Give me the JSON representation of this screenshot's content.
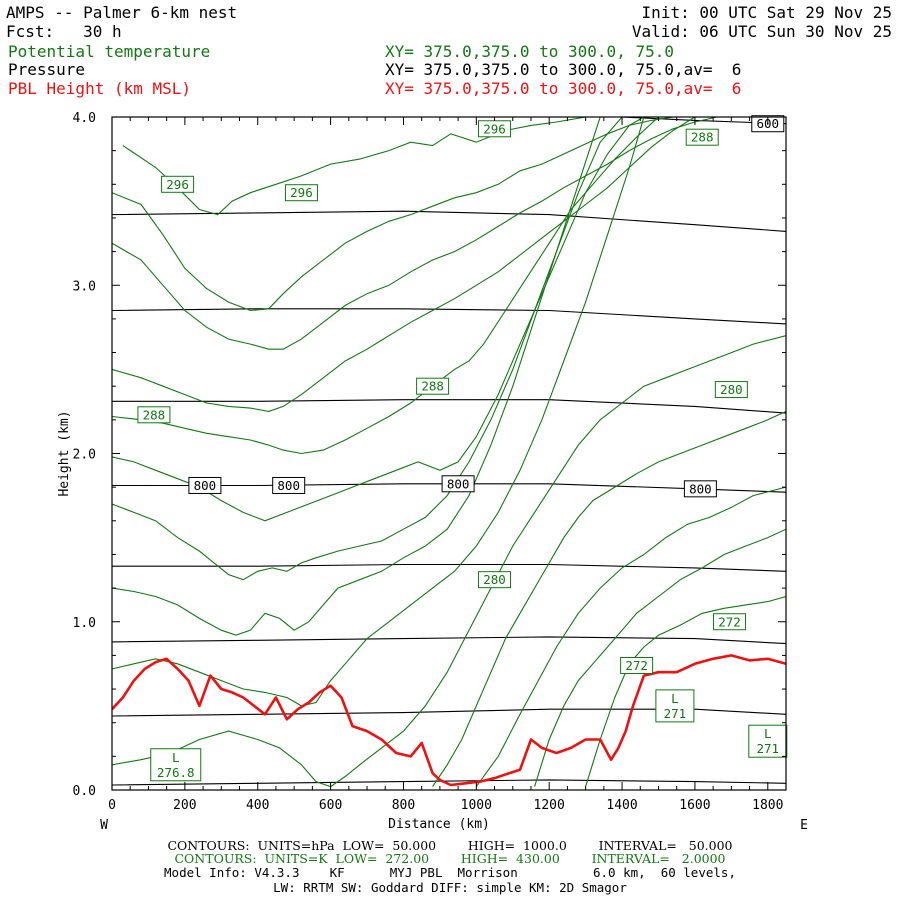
{
  "header": {
    "model_title": "AMPS -- Palmer 6-km nest",
    "forecast": "Fcst:   30 h",
    "init": "Init: 00 UTC Sat 29 Nov 25",
    "valid": "Valid: 06 UTC Sun 30 Nov 25",
    "fields": [
      {
        "name": "Potential temperature",
        "xy": "XY= 375.0,375.0 to 300.0, 75.0",
        "color": "#127812"
      },
      {
        "name": "Pressure",
        "xy": "XY= 375.0,375.0 to 300.0, 75.0,av=  6",
        "color": "#000000"
      },
      {
        "name": "PBL Height (km MSL)",
        "xy": "XY= 375.0,375.0 to 300.0, 75.0,av=  6",
        "color": "#ee1111"
      }
    ]
  },
  "chart_data": {
    "type": "line",
    "xlabel": "Distance (km)",
    "ylabel": "Height (km)",
    "xlim": [
      0,
      1850
    ],
    "ylim": [
      0,
      4.0
    ],
    "x_ticks": [
      "0",
      "200",
      "400",
      "600",
      "800",
      "1000",
      "1200",
      "1400",
      "1600",
      "1800"
    ],
    "y_ticks": [
      "0.0",
      "1.0",
      "2.0",
      "3.0",
      "4.0"
    ],
    "direction_left": "W",
    "direction_right": "E",
    "colors": {
      "pressure": "#000000",
      "theta": "#127812",
      "pbl": "#ee1111"
    },
    "pressure_contours": [
      {
        "x": [
          0,
          400,
          800,
          1200,
          1600,
          1850
        ],
        "y": [
          0.03,
          0.04,
          0.05,
          0.06,
          0.05,
          0.04
        ]
      },
      {
        "x": [
          0,
          400,
          800,
          1200,
          1600,
          1850
        ],
        "y": [
          0.44,
          0.45,
          0.46,
          0.48,
          0.48,
          0.45
        ]
      },
      {
        "x": [
          0,
          400,
          800,
          1200,
          1600,
          1850
        ],
        "y": [
          0.88,
          0.89,
          0.9,
          0.91,
          0.9,
          0.87
        ]
      },
      {
        "x": [
          0,
          400,
          800,
          1200,
          1600,
          1850
        ],
        "y": [
          1.33,
          1.33,
          1.34,
          1.34,
          1.32,
          1.3
        ]
      },
      {
        "x": [
          0,
          400,
          800,
          1200,
          1600,
          1850
        ],
        "y": [
          1.81,
          1.81,
          1.82,
          1.82,
          1.79,
          1.77
        ]
      },
      {
        "x": [
          0,
          400,
          800,
          1200,
          1600,
          1850
        ],
        "y": [
          2.31,
          2.31,
          2.32,
          2.32,
          2.28,
          2.24
        ]
      },
      {
        "x": [
          0,
          400,
          800,
          1200,
          1600,
          1850
        ],
        "y": [
          2.85,
          2.86,
          2.86,
          2.85,
          2.8,
          2.77
        ]
      },
      {
        "x": [
          0,
          400,
          800,
          1200,
          1600,
          1850
        ],
        "y": [
          3.42,
          3.43,
          3.44,
          3.42,
          3.36,
          3.32
        ]
      },
      {
        "x": [
          0,
          400,
          800,
          1200,
          1600,
          1850
        ],
        "y": [
          4.02,
          4.03,
          4.03,
          4.02,
          3.98,
          3.96
        ]
      }
    ],
    "pressure_labels": [
      {
        "text": "800",
        "x": 255,
        "y": 1.81
      },
      {
        "text": "800",
        "x": 485,
        "y": 1.81
      },
      {
        "text": "800",
        "x": 950,
        "y": 1.82
      },
      {
        "text": "800",
        "x": 1615,
        "y": 1.79
      },
      {
        "text": "600",
        "x": 1800,
        "y": 3.96
      }
    ],
    "theta_contours": [
      {
        "x": [
          30,
          120,
          180,
          240,
          290,
          330,
          380,
          450,
          520,
          600,
          680,
          760,
          820,
          880,
          930,
          1000,
          1080,
          1150,
          1220,
          1300,
          1400,
          1500,
          1600,
          1700,
          1780,
          1850
        ],
        "y": [
          3.83,
          3.7,
          3.58,
          3.45,
          3.42,
          3.5,
          3.55,
          3.6,
          3.65,
          3.72,
          3.75,
          3.8,
          3.85,
          3.83,
          3.9,
          3.85,
          3.92,
          3.95,
          3.97,
          4.0,
          4.0,
          4.0,
          4.0,
          4.0,
          4.0,
          4.0
        ]
      },
      {
        "x": [
          0,
          80,
          140,
          200,
          260,
          320,
          380,
          430,
          470,
          520,
          580,
          640,
          700,
          760,
          820,
          880,
          940,
          1000,
          1060,
          1120,
          1180,
          1240,
          1300,
          1360,
          1420,
          1480,
          1540,
          1600,
          1660,
          1720
        ],
        "y": [
          3.55,
          3.48,
          3.3,
          3.1,
          2.98,
          2.9,
          2.85,
          2.86,
          2.95,
          3.05,
          3.15,
          3.25,
          3.32,
          3.38,
          3.42,
          3.47,
          3.52,
          3.55,
          3.6,
          3.68,
          3.72,
          3.78,
          3.84,
          3.9,
          3.95,
          3.98,
          4.0,
          4.02,
          4.02,
          4.02
        ]
      },
      {
        "x": [
          0,
          80,
          140,
          200,
          260,
          320,
          380,
          430,
          470,
          520,
          580,
          640,
          700,
          760,
          820,
          880,
          940,
          1000,
          1060,
          1120,
          1180,
          1240,
          1300,
          1360,
          1420,
          1480,
          1540,
          1600,
          1660
        ],
        "y": [
          3.25,
          3.15,
          3.0,
          2.85,
          2.75,
          2.68,
          2.65,
          2.62,
          2.62,
          2.68,
          2.78,
          2.88,
          2.95,
          3.0,
          3.08,
          3.15,
          3.2,
          3.27,
          3.35,
          3.43,
          3.5,
          3.58,
          3.65,
          3.72,
          3.8,
          3.87,
          3.93,
          3.97,
          4.0
        ]
      },
      {
        "x": [
          0,
          80,
          140,
          200,
          260,
          320,
          380,
          430,
          470,
          520,
          580,
          640,
          700,
          760,
          820,
          880,
          940,
          1000,
          1060,
          1120,
          1180,
          1240,
          1300,
          1360,
          1420,
          1480,
          1540,
          1600
        ],
        "y": [
          2.5,
          2.45,
          2.4,
          2.35,
          2.3,
          2.28,
          2.27,
          2.25,
          2.28,
          2.35,
          2.45,
          2.55,
          2.62,
          2.7,
          2.78,
          2.85,
          2.92,
          3.0,
          3.08,
          3.18,
          3.28,
          3.38,
          3.48,
          3.58,
          3.7,
          3.82,
          3.92,
          4.0
        ]
      },
      {
        "x": [
          0,
          80,
          140,
          200,
          260,
          320,
          380,
          430,
          470,
          520,
          580,
          640,
          700,
          760,
          820,
          880,
          940,
          980,
          1020,
          1080,
          1140,
          1200,
          1260,
          1320,
          1380,
          1440,
          1500
        ],
        "y": [
          2.22,
          2.2,
          2.18,
          2.15,
          2.12,
          2.1,
          2.08,
          2.05,
          2.02,
          2.0,
          2.02,
          2.08,
          2.15,
          2.22,
          2.3,
          2.4,
          2.5,
          2.55,
          2.65,
          2.85,
          3.05,
          3.25,
          3.45,
          3.6,
          3.75,
          3.88,
          4.0
        ]
      },
      {
        "x": [
          0,
          60,
          120,
          180,
          240,
          300,
          360,
          420,
          480,
          540,
          600,
          660,
          720,
          780,
          840,
          900,
          950,
          1000,
          1060,
          1120,
          1180,
          1240,
          1300,
          1360,
          1420,
          1460
        ],
        "y": [
          1.98,
          1.95,
          1.9,
          1.85,
          1.8,
          1.72,
          1.65,
          1.6,
          1.65,
          1.7,
          1.75,
          1.8,
          1.85,
          1.9,
          1.95,
          1.9,
          1.95,
          2.1,
          2.35,
          2.65,
          2.95,
          3.25,
          3.55,
          3.78,
          3.95,
          4.0
        ]
      },
      {
        "x": [
          0,
          60,
          120,
          180,
          240,
          280,
          320,
          360,
          400,
          440,
          480,
          520,
          560,
          620,
          680,
          740,
          800,
          860,
          920,
          980,
          1040,
          1100,
          1160,
          1220,
          1280,
          1340,
          1400
        ],
        "y": [
          1.7,
          1.65,
          1.6,
          1.5,
          1.42,
          1.35,
          1.28,
          1.25,
          1.3,
          1.32,
          1.3,
          1.35,
          1.38,
          1.42,
          1.45,
          1.48,
          1.55,
          1.62,
          1.75,
          1.95,
          2.2,
          2.5,
          2.85,
          3.2,
          3.55,
          3.85,
          4.0
        ]
      },
      {
        "x": [
          0,
          60,
          120,
          180,
          240,
          300,
          340,
          380,
          420,
          460,
          500,
          540,
          580,
          620,
          680,
          740,
          800,
          860,
          920,
          980,
          1040,
          1100,
          1160,
          1220,
          1280,
          1340
        ],
        "y": [
          1.2,
          1.18,
          1.15,
          1.1,
          1.02,
          0.95,
          0.92,
          0.95,
          1.05,
          1.02,
          0.95,
          1.0,
          1.1,
          1.2,
          1.25,
          1.3,
          1.38,
          1.45,
          1.55,
          1.75,
          2.05,
          2.4,
          2.8,
          3.2,
          3.6,
          4.0
        ]
      },
      {
        "x": [
          0,
          60,
          120,
          180,
          240,
          300,
          360,
          420,
          480,
          520,
          560,
          600,
          640,
          700,
          760,
          820,
          880,
          940,
          1000,
          1060,
          1120,
          1180,
          1240,
          1300,
          1360,
          1420,
          1460
        ],
        "y": [
          0.72,
          0.75,
          0.78,
          0.75,
          0.7,
          0.65,
          0.6,
          0.58,
          0.55,
          0.5,
          0.52,
          0.65,
          0.75,
          0.9,
          1.0,
          1.1,
          1.2,
          1.3,
          1.45,
          1.65,
          1.9,
          2.2,
          2.55,
          2.9,
          3.3,
          3.7,
          4.0
        ]
      },
      {
        "x": [
          0,
          80,
          160,
          240,
          320,
          400,
          460,
          520,
          560,
          600,
          640,
          680,
          740,
          800,
          860,
          920,
          980,
          1040,
          1100,
          1160,
          1220,
          1280,
          1340,
          1400,
          1460,
          1520,
          1580,
          1640,
          1700,
          1760,
          1850
        ],
        "y": [
          0.15,
          0.18,
          0.22,
          0.3,
          0.35,
          0.3,
          0.25,
          0.15,
          0.05,
          0.02,
          0.08,
          0.15,
          0.25,
          0.35,
          0.5,
          0.7,
          0.95,
          1.2,
          1.45,
          1.65,
          1.85,
          2.05,
          2.2,
          2.3,
          2.4,
          2.45,
          2.5,
          2.55,
          2.6,
          2.65,
          2.7
        ]
      },
      {
        "x": [
          880,
          920,
          960,
          1000,
          1040,
          1080,
          1120,
          1160,
          1200,
          1240,
          1280,
          1320,
          1380,
          1440,
          1500,
          1560,
          1620,
          1680,
          1740,
          1800,
          1850
        ],
        "y": [
          0.02,
          0.15,
          0.3,
          0.5,
          0.7,
          0.9,
          1.05,
          1.2,
          1.35,
          1.5,
          1.62,
          1.72,
          1.8,
          1.88,
          1.95,
          2.0,
          2.05,
          2.1,
          2.15,
          2.2,
          2.25
        ]
      },
      {
        "x": [
          1000,
          1060,
          1120,
          1170,
          1220,
          1280,
          1340,
          1400,
          1460,
          1520,
          1580,
          1640,
          1700,
          1760,
          1850
        ],
        "y": [
          0.02,
          0.2,
          0.45,
          0.65,
          0.85,
          1.05,
          1.2,
          1.32,
          1.4,
          1.5,
          1.58,
          1.62,
          1.68,
          1.75,
          1.8
        ]
      },
      {
        "x": [
          1160,
          1200,
          1240,
          1280,
          1320,
          1360,
          1400,
          1440,
          1500,
          1560,
          1620,
          1680,
          1740,
          1800,
          1850
        ],
        "y": [
          0.02,
          0.3,
          0.5,
          0.65,
          0.75,
          0.85,
          0.95,
          1.05,
          1.15,
          1.25,
          1.32,
          1.4,
          1.45,
          1.5,
          1.55
        ]
      },
      {
        "x": [
          1300,
          1340,
          1380,
          1420,
          1460,
          1500,
          1560,
          1620,
          1680,
          1740,
          1800,
          1850
        ],
        "y": [
          0.02,
          0.3,
          0.55,
          0.75,
          0.85,
          0.92,
          0.98,
          1.05,
          1.08,
          1.1,
          1.12,
          1.15
        ]
      }
    ],
    "theta_labels": [
      {
        "text": "296",
        "x": 1050,
        "y": 3.93
      },
      {
        "text": "288",
        "x": 1620,
        "y": 3.88
      },
      {
        "text": "296",
        "x": 180,
        "y": 3.6
      },
      {
        "text": "296",
        "x": 520,
        "y": 3.55
      },
      {
        "text": "288",
        "x": 880,
        "y": 2.4
      },
      {
        "text": "288",
        "x": 115,
        "y": 2.23
      },
      {
        "text": "280",
        "x": 1700,
        "y": 2.38
      },
      {
        "text": "280",
        "x": 1050,
        "y": 1.25
      },
      {
        "text": "272",
        "x": 1695,
        "y": 1.0
      },
      {
        "text": "272",
        "x": 1440,
        "y": 0.74
      }
    ],
    "lows": [
      {
        "label": "L",
        "value": "276.8",
        "x": 175,
        "y": 0.15
      },
      {
        "label": "L",
        "value": "271",
        "x": 1545,
        "y": 0.5
      },
      {
        "label": "L",
        "value": "271",
        "x": 1800,
        "y": 0.29
      }
    ],
    "pbl_height": {
      "x": [
        0,
        30,
        60,
        90,
        120,
        150,
        180,
        210,
        240,
        270,
        300,
        330,
        360,
        390,
        420,
        450,
        480,
        510,
        540,
        570,
        600,
        630,
        660,
        700,
        740,
        780,
        820,
        850,
        880,
        900,
        930,
        970,
        1010,
        1050,
        1090,
        1120,
        1150,
        1180,
        1220,
        1260,
        1300,
        1340,
        1370,
        1390,
        1410,
        1430,
        1460,
        1500,
        1550,
        1600,
        1650,
        1700,
        1750,
        1800,
        1850
      ],
      "y": [
        0.48,
        0.55,
        0.65,
        0.72,
        0.76,
        0.78,
        0.72,
        0.65,
        0.5,
        0.68,
        0.6,
        0.58,
        0.55,
        0.5,
        0.45,
        0.55,
        0.42,
        0.48,
        0.52,
        0.58,
        0.62,
        0.55,
        0.38,
        0.35,
        0.3,
        0.22,
        0.2,
        0.28,
        0.1,
        0.06,
        0.03,
        0.04,
        0.05,
        0.07,
        0.1,
        0.12,
        0.3,
        0.25,
        0.22,
        0.25,
        0.3,
        0.3,
        0.18,
        0.25,
        0.35,
        0.5,
        0.68,
        0.7,
        0.7,
        0.75,
        0.78,
        0.8,
        0.77,
        0.78,
        0.75
      ]
    }
  },
  "footer": {
    "line1": "CONTOURS:  UNITS=hPa  LOW=  50.000        HIGH=  1000.0        INTERVAL=   50.000",
    "line2": "CONTOURS:  UNITS=K  LOW=  272.00        HIGH=  430.00        INTERVAL=   2.0000",
    "line3": "Model Info: V4.3.3    KF      MYJ PBL  Morrison          6.0 km,  60 levels,",
    "line4": "LW: RRTM SW: Goddard DIFF: simple KM: 2D Smagor"
  }
}
